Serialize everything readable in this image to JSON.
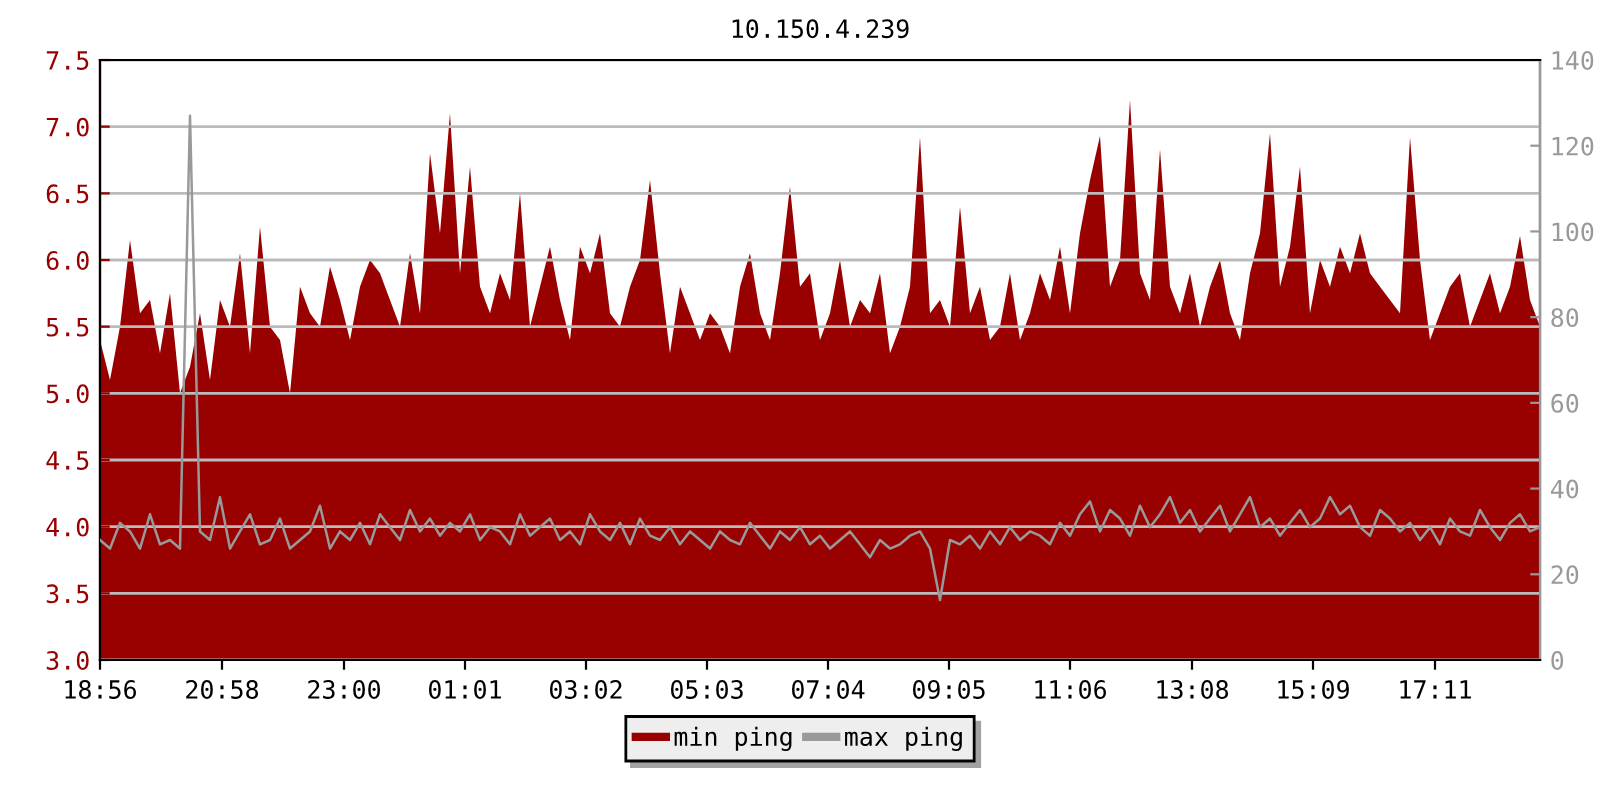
{
  "chart_data": {
    "type": "area",
    "title": "10.150.4.239",
    "x": [
      "2000-01-01T18:56",
      "2000-01-01T19:06",
      "2000-01-01T19:16",
      "2000-01-01T19:26",
      "2000-01-01T19:36",
      "2000-01-01T19:46",
      "2000-01-01T19:56",
      "2000-01-01T20:06",
      "2000-01-01T20:16",
      "2000-01-01T20:26",
      "2000-01-01T20:36",
      "2000-01-01T20:46",
      "2000-01-01T20:56",
      "2000-01-01T21:06",
      "2000-01-01T21:16",
      "2000-01-01T21:26",
      "2000-01-01T21:36",
      "2000-01-01T21:46",
      "2000-01-01T21:56",
      "2000-01-01T22:06",
      "2000-01-01T22:16",
      "2000-01-01T22:26",
      "2000-01-01T22:36",
      "2000-01-01T22:46",
      "2000-01-01T22:56",
      "2000-01-01T23:06",
      "2000-01-01T23:16",
      "2000-01-01T23:26",
      "2000-01-01T23:36",
      "2000-01-01T23:46",
      "2000-01-01T23:56",
      "2000-01-02T00:06",
      "2000-01-02T00:16",
      "2000-01-02T00:26",
      "2000-01-02T00:36",
      "2000-01-02T00:46",
      "2000-01-02T00:56",
      "2000-01-02T01:06",
      "2000-01-02T01:16",
      "2000-01-02T01:26",
      "2000-01-02T01:36",
      "2000-01-02T01:46",
      "2000-01-02T01:56",
      "2000-01-02T02:06",
      "2000-01-02T02:16",
      "2000-01-02T02:26",
      "2000-01-02T02:36",
      "2000-01-02T02:46",
      "2000-01-02T02:56",
      "2000-01-02T03:06",
      "2000-01-02T03:16",
      "2000-01-02T03:26",
      "2000-01-02T03:36",
      "2000-01-02T03:46",
      "2000-01-02T03:56",
      "2000-01-02T04:06",
      "2000-01-02T04:16",
      "2000-01-02T04:26",
      "2000-01-02T04:36",
      "2000-01-02T04:46",
      "2000-01-02T04:56",
      "2000-01-02T05:06",
      "2000-01-02T05:16",
      "2000-01-02T05:26",
      "2000-01-02T05:36",
      "2000-01-02T05:46",
      "2000-01-02T05:56",
      "2000-01-02T06:06",
      "2000-01-02T06:16",
      "2000-01-02T06:26",
      "2000-01-02T06:36",
      "2000-01-02T06:46",
      "2000-01-02T06:56",
      "2000-01-02T07:06",
      "2000-01-02T07:16",
      "2000-01-02T07:26",
      "2000-01-02T07:36",
      "2000-01-02T07:46",
      "2000-01-02T07:56",
      "2000-01-02T08:06",
      "2000-01-02T08:16",
      "2000-01-02T08:26",
      "2000-01-02T08:36",
      "2000-01-02T08:46",
      "2000-01-02T08:56",
      "2000-01-02T09:06",
      "2000-01-02T09:16",
      "2000-01-02T09:26",
      "2000-01-02T09:36",
      "2000-01-02T09:46",
      "2000-01-02T09:56",
      "2000-01-02T10:06",
      "2000-01-02T10:16",
      "2000-01-02T10:26",
      "2000-01-02T10:36",
      "2000-01-02T10:46",
      "2000-01-02T10:56",
      "2000-01-02T11:06",
      "2000-01-02T11:16",
      "2000-01-02T11:26",
      "2000-01-02T11:36",
      "2000-01-02T11:46",
      "2000-01-02T11:56",
      "2000-01-02T12:06",
      "2000-01-02T12:16",
      "2000-01-02T12:26",
      "2000-01-02T12:36",
      "2000-01-02T12:46",
      "2000-01-02T12:56",
      "2000-01-02T13:06",
      "2000-01-02T13:16",
      "2000-01-02T13:26",
      "2000-01-02T13:36",
      "2000-01-02T13:46",
      "2000-01-02T13:56",
      "2000-01-02T14:06",
      "2000-01-02T14:16",
      "2000-01-02T14:26",
      "2000-01-02T14:36",
      "2000-01-02T14:46",
      "2000-01-02T14:56",
      "2000-01-02T15:06",
      "2000-01-02T15:16",
      "2000-01-02T15:26",
      "2000-01-02T15:36",
      "2000-01-02T15:46",
      "2000-01-02T15:56",
      "2000-01-02T16:06",
      "2000-01-02T16:16",
      "2000-01-02T16:26",
      "2000-01-02T16:36",
      "2000-01-02T16:46",
      "2000-01-02T16:56",
      "2000-01-02T17:06",
      "2000-01-02T17:16",
      "2000-01-02T17:26",
      "2000-01-02T17:36",
      "2000-01-02T17:46",
      "2000-01-02T17:56",
      "2000-01-02T18:06",
      "2000-01-02T18:16",
      "2000-01-02T18:26",
      "2000-01-02T18:36",
      "2000-01-02T18:46",
      "2000-01-02T18:56"
    ],
    "series": [
      {
        "name": "min ping",
        "color": "#990000",
        "values": [
          5.4,
          5.1,
          5.5,
          6.15,
          5.6,
          5.7,
          5.3,
          5.75,
          5.0,
          5.2,
          5.6,
          5.1,
          5.7,
          5.5,
          6.05,
          5.3,
          6.25,
          5.5,
          5.4,
          5.0,
          5.8,
          5.6,
          5.5,
          5.95,
          5.7,
          5.4,
          5.8,
          6.0,
          5.9,
          5.7,
          5.5,
          6.05,
          5.6,
          6.8,
          6.2,
          7.1,
          5.9,
          6.7,
          5.8,
          5.6,
          5.9,
          5.7,
          6.5,
          5.5,
          5.8,
          6.1,
          5.7,
          5.4,
          6.1,
          5.9,
          6.2,
          5.6,
          5.5,
          5.8,
          6.0,
          6.6,
          5.9,
          5.3,
          5.8,
          5.6,
          5.4,
          5.6,
          5.5,
          5.3,
          5.8,
          6.05,
          5.6,
          5.4,
          5.9,
          6.55,
          5.8,
          5.9,
          5.4,
          5.6,
          6.0,
          5.5,
          5.7,
          5.6,
          5.9,
          5.3,
          5.5,
          5.8,
          6.92,
          5.6,
          5.7,
          5.5,
          6.4,
          5.6,
          5.8,
          5.4,
          5.5,
          5.9,
          5.4,
          5.6,
          5.9,
          5.7,
          6.1,
          5.6,
          6.2,
          6.6,
          6.93,
          5.8,
          6.0,
          7.2,
          5.9,
          5.7,
          6.83,
          5.8,
          5.6,
          5.9,
          5.5,
          5.8,
          6.0,
          5.6,
          5.4,
          5.9,
          6.2,
          6.95,
          5.8,
          6.1,
          6.7,
          5.6,
          6.0,
          5.8,
          6.1,
          5.9,
          6.2,
          5.9,
          5.8,
          5.7,
          5.6,
          6.92,
          6.0,
          5.4,
          5.6,
          5.8,
          5.9,
          5.5,
          5.7,
          5.9,
          5.6,
          5.8,
          6.18,
          5.7,
          5.5
        ]
      },
      {
        "name": "max ping",
        "type": "line",
        "axis": "y2",
        "color": "#999999",
        "values": [
          28,
          26,
          32,
          30,
          26,
          34,
          27,
          28,
          26,
          127,
          30,
          28,
          38,
          26,
          30,
          34,
          27,
          28,
          33,
          26,
          28,
          30,
          36,
          26,
          30,
          28,
          32,
          27,
          34,
          31,
          28,
          35,
          30,
          33,
          29,
          32,
          30,
          34,
          28,
          31,
          30,
          27,
          34,
          29,
          31,
          33,
          28,
          30,
          27,
          34,
          30,
          28,
          32,
          27,
          33,
          29,
          28,
          31,
          27,
          30,
          28,
          26,
          30,
          28,
          27,
          32,
          29,
          26,
          30,
          28,
          31,
          27,
          29,
          26,
          28,
          30,
          27,
          24,
          28,
          26,
          27,
          29,
          30,
          26,
          14,
          28,
          27,
          29,
          26,
          30,
          27,
          31,
          28,
          30,
          29,
          27,
          32,
          29,
          34,
          37,
          30,
          35,
          33,
          29,
          36,
          31,
          34,
          38,
          32,
          35,
          30,
          33,
          36,
          30,
          34,
          38,
          31,
          33,
          29,
          32,
          35,
          31,
          33,
          38,
          34,
          36,
          31,
          29,
          35,
          33,
          30,
          32,
          28,
          31,
          27,
          33,
          30,
          29,
          35,
          31,
          28,
          32,
          34,
          30,
          31
        ]
      }
    ],
    "xlim": [
      "2000-01-01T18:56",
      "2000-01-02T18:56"
    ],
    "xticks": [
      {
        "value": "2000-01-01T18:56",
        "label": "18:56"
      },
      {
        "value": "2000-01-01T20:58",
        "label": "20:58"
      },
      {
        "value": "2000-01-01T23:00",
        "label": "23:00"
      },
      {
        "value": "2000-01-02T01:01",
        "label": "01:01"
      },
      {
        "value": "2000-01-02T03:02",
        "label": "03:02"
      },
      {
        "value": "2000-01-02T05:03",
        "label": "05:03"
      },
      {
        "value": "2000-01-02T07:04",
        "label": "07:04"
      },
      {
        "value": "2000-01-02T09:05",
        "label": "09:05"
      },
      {
        "value": "2000-01-02T11:06",
        "label": "11:06"
      },
      {
        "value": "2000-01-02T13:08",
        "label": "13:08"
      },
      {
        "value": "2000-01-02T15:09",
        "label": "15:09"
      },
      {
        "value": "2000-01-02T17:11",
        "label": "17:11"
      }
    ],
    "ylim": [
      3.0,
      7.5
    ],
    "yticks": [
      {
        "value": 3.0,
        "label": "3.0"
      },
      {
        "value": 3.5,
        "label": "3.5"
      },
      {
        "value": 4.0,
        "label": "4.0"
      },
      {
        "value": 4.5,
        "label": "4.5"
      },
      {
        "value": 5.0,
        "label": "5.0"
      },
      {
        "value": 5.5,
        "label": "5.5"
      },
      {
        "value": 6.0,
        "label": "6.0"
      },
      {
        "value": 6.5,
        "label": "6.5"
      },
      {
        "value": 7.0,
        "label": "7.0"
      },
      {
        "value": 7.5,
        "label": "7.5"
      }
    ],
    "y2lim": [
      0,
      140
    ],
    "y2ticks": [
      0,
      20,
      40,
      60,
      80,
      100,
      120,
      140
    ],
    "grid": "y",
    "legend": "bottom"
  }
}
